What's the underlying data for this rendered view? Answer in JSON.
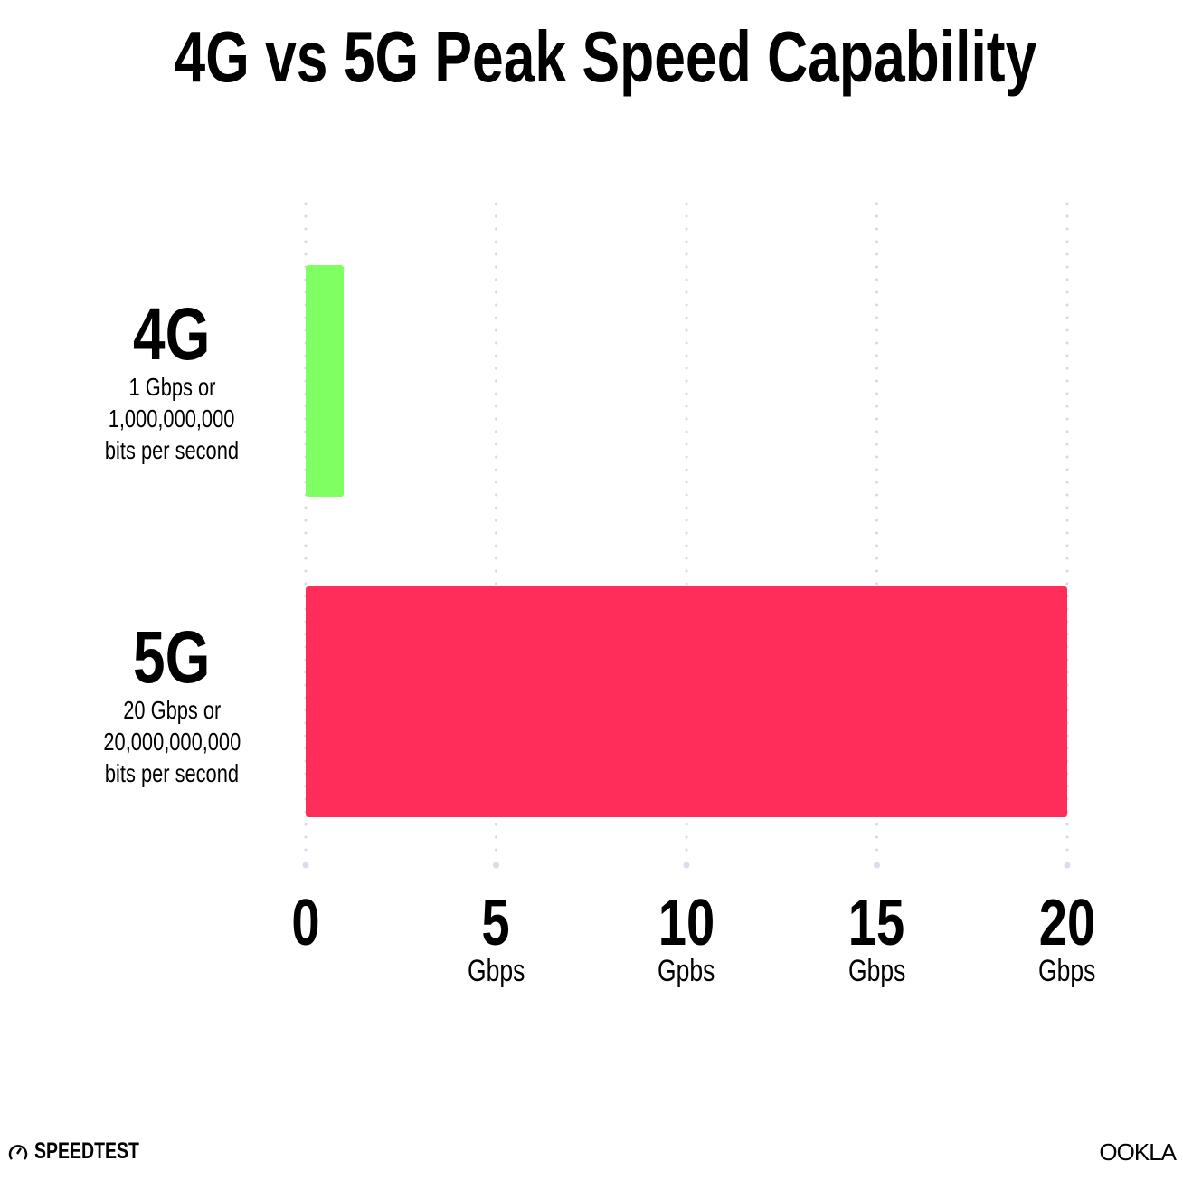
{
  "chart_data": {
    "type": "bar",
    "orientation": "horizontal",
    "title": "4G vs 5G Peak Speed Capability",
    "categories": [
      {
        "name": "4G",
        "lines": [
          "1 Gbps or",
          "1,000,000,000",
          "bits per second"
        ]
      },
      {
        "name": "5G",
        "lines": [
          "20 Gbps or",
          "20,000,000,000",
          "bits per second"
        ]
      }
    ],
    "values": [
      1,
      20
    ],
    "colors": [
      "#80FF62",
      "#FF2D5A"
    ],
    "xlim": [
      0,
      20
    ],
    "grid": true,
    "xticks": [
      {
        "value": 0,
        "label": "0",
        "unit": ""
      },
      {
        "value": 5,
        "label": "5",
        "unit": "Gbps"
      },
      {
        "value": 10,
        "label": "10",
        "unit": "Gpbs"
      },
      {
        "value": 15,
        "label": "15",
        "unit": "Gbps"
      },
      {
        "value": 20,
        "label": "20",
        "unit": "Gbps"
      }
    ]
  },
  "logos": {
    "left": "SPEEDTEST",
    "right": "OOKLA"
  }
}
